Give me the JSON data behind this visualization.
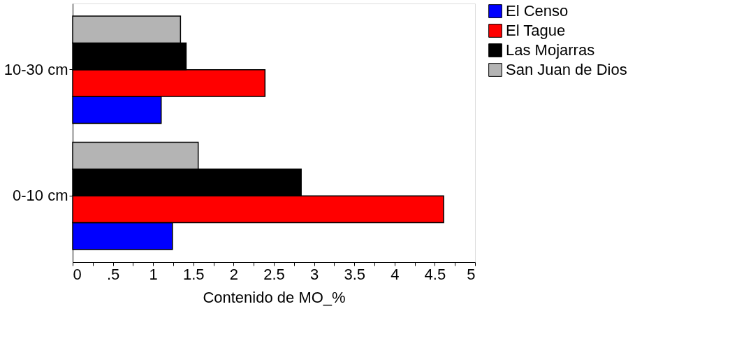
{
  "chart_data": {
    "type": "bar",
    "orientation": "horizontal",
    "xlabel": "Contenido de MO_%",
    "categories": [
      "10-30 cm",
      "0-10 cm"
    ],
    "series": [
      {
        "name": "El Censo",
        "color": "#0000ff",
        "values": [
          1.1,
          1.24
        ]
      },
      {
        "name": "El Tague",
        "color": "#ff0000",
        "values": [
          2.39,
          4.61
        ]
      },
      {
        "name": "Las Mojarras",
        "color": "#000000",
        "values": [
          1.41,
          2.84
        ]
      },
      {
        "name": "San Juan de Dios",
        "color": "#b4b4b4",
        "values": [
          1.34,
          1.56
        ]
      }
    ],
    "xlim": [
      0,
      5
    ],
    "xticks": [
      0,
      {
        "value": 0.25,
        "label": null
      },
      {
        "value": 0.5,
        "label": ".5"
      },
      {
        "value": 0.75,
        "label": null
      },
      1,
      {
        "value": 1.25,
        "label": null
      },
      1.5,
      {
        "value": 1.75,
        "label": null
      },
      2,
      {
        "value": 2.25,
        "label": null
      },
      2.5,
      {
        "value": 2.75,
        "label": null
      },
      3,
      {
        "value": 3.25,
        "label": null
      },
      3.5,
      {
        "value": 3.75,
        "label": null
      },
      4,
      {
        "value": 4.25,
        "label": null
      },
      4.5,
      {
        "value": 4.75,
        "label": null
      },
      5
    ],
    "grid": false,
    "legend": "right"
  }
}
